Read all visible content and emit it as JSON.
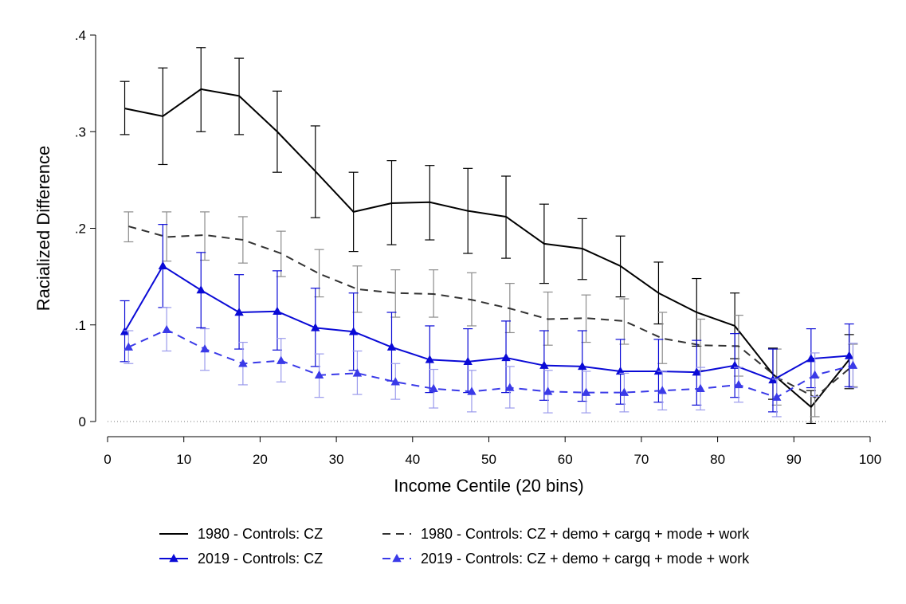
{
  "chart_data": {
    "type": "line",
    "title": "",
    "xlabel": "Income Centile (20 bins)",
    "ylabel": "Racialized Difference",
    "xlim": [
      0,
      100
    ],
    "ylim": [
      0,
      0.4
    ],
    "xticks": [
      0,
      10,
      20,
      30,
      40,
      50,
      60,
      70,
      80,
      90,
      100
    ],
    "yticks": [
      0,
      0.1,
      0.2,
      0.3,
      0.4
    ],
    "ytick_labels": [
      "0",
      ".1",
      ".2",
      ".3",
      ".4"
    ],
    "reference_line": {
      "y": 0,
      "style": "dotted"
    },
    "legend_placement": "bottom",
    "series": [
      {
        "name": "1980 - Controls: CZ",
        "color": "#000000",
        "line": "solid",
        "marker": "none",
        "x": [
          2.25,
          7.25,
          12.25,
          17.25,
          22.25,
          27.25,
          32.25,
          37.25,
          42.25,
          47.25,
          52.25,
          57.25,
          62.25,
          67.25,
          72.25,
          77.25,
          82.25,
          87.25,
          92.25,
          97.25
        ],
        "y": [
          0.324,
          0.316,
          0.344,
          0.337,
          0.3,
          0.259,
          0.217,
          0.226,
          0.227,
          0.218,
          0.212,
          0.184,
          0.179,
          0.161,
          0.133,
          0.113,
          0.099,
          0.049,
          0.015,
          0.064
        ],
        "ci_low": [
          0.297,
          0.266,
          0.3,
          0.297,
          0.258,
          0.211,
          0.176,
          0.183,
          0.188,
          0.174,
          0.169,
          0.143,
          0.147,
          0.129,
          0.101,
          0.078,
          0.065,
          0.023,
          -0.002,
          0.034
        ],
        "ci_high": [
          0.352,
          0.366,
          0.387,
          0.376,
          0.342,
          0.306,
          0.258,
          0.27,
          0.265,
          0.262,
          0.254,
          0.225,
          0.21,
          0.192,
          0.165,
          0.148,
          0.133,
          0.076,
          0.032,
          0.09
        ]
      },
      {
        "name": "1980 - Controls: CZ + demo + cargq + mode + work",
        "color": "#333333",
        "ci_color": "#8c8c8c",
        "line": "dashed",
        "marker": "none",
        "x": [
          2.75,
          7.75,
          12.75,
          17.75,
          22.75,
          27.75,
          32.75,
          37.75,
          42.75,
          47.75,
          52.75,
          57.75,
          62.75,
          67.75,
          72.75,
          77.75,
          82.75,
          87.75,
          92.75,
          97.75
        ],
        "y": [
          0.202,
          0.191,
          0.193,
          0.188,
          0.174,
          0.153,
          0.137,
          0.133,
          0.132,
          0.126,
          0.117,
          0.106,
          0.107,
          0.104,
          0.086,
          0.079,
          0.078,
          0.046,
          0.025,
          0.058
        ],
        "ci_low": [
          0.186,
          0.166,
          0.167,
          0.164,
          0.15,
          0.129,
          0.113,
          0.108,
          0.108,
          0.099,
          0.092,
          0.079,
          0.082,
          0.08,
          0.06,
          0.053,
          0.047,
          0.017,
          0.005,
          0.036
        ],
        "ci_high": [
          0.217,
          0.217,
          0.217,
          0.212,
          0.197,
          0.178,
          0.161,
          0.157,
          0.157,
          0.154,
          0.143,
          0.134,
          0.131,
          0.127,
          0.113,
          0.106,
          0.11,
          0.075,
          0.046,
          0.08
        ]
      },
      {
        "name": "2019 - Controls: CZ",
        "color": "#0a0ad6",
        "line": "solid",
        "marker": "triangle",
        "x": [
          2.25,
          7.25,
          12.25,
          17.25,
          22.25,
          27.25,
          32.25,
          37.25,
          42.25,
          47.25,
          52.25,
          57.25,
          62.25,
          67.25,
          72.25,
          77.25,
          82.25,
          87.25,
          92.25,
          97.25
        ],
        "y": [
          0.093,
          0.161,
          0.136,
          0.113,
          0.114,
          0.097,
          0.093,
          0.077,
          0.064,
          0.062,
          0.066,
          0.058,
          0.057,
          0.052,
          0.052,
          0.051,
          0.058,
          0.043,
          0.065,
          0.068
        ],
        "ci_low": [
          0.062,
          0.118,
          0.097,
          0.075,
          0.074,
          0.057,
          0.053,
          0.042,
          0.03,
          0.03,
          0.03,
          0.022,
          0.021,
          0.018,
          0.02,
          0.017,
          0.025,
          0.01,
          0.035,
          0.036
        ],
        "ci_high": [
          0.125,
          0.204,
          0.175,
          0.152,
          0.156,
          0.138,
          0.133,
          0.113,
          0.099,
          0.096,
          0.104,
          0.094,
          0.094,
          0.085,
          0.085,
          0.084,
          0.091,
          0.075,
          0.096,
          0.101
        ]
      },
      {
        "name": "2019 - Controls: CZ + demo + cargq + mode + work",
        "color": "#3a3ae8",
        "ci_color": "#9a9aec",
        "line": "dashed",
        "marker": "triangle",
        "x": [
          2.75,
          7.75,
          12.75,
          17.75,
          22.75,
          27.75,
          32.75,
          37.75,
          42.75,
          47.75,
          52.75,
          57.75,
          62.75,
          67.75,
          72.75,
          77.75,
          82.75,
          87.75,
          92.75,
          97.75
        ],
        "y": [
          0.077,
          0.095,
          0.075,
          0.06,
          0.063,
          0.048,
          0.05,
          0.041,
          0.034,
          0.031,
          0.035,
          0.031,
          0.03,
          0.03,
          0.032,
          0.034,
          0.038,
          0.025,
          0.048,
          0.058
        ],
        "ci_low": [
          0.06,
          0.073,
          0.053,
          0.038,
          0.041,
          0.025,
          0.028,
          0.023,
          0.014,
          0.01,
          0.014,
          0.009,
          0.009,
          0.01,
          0.012,
          0.012,
          0.02,
          0.005,
          0.026,
          0.035
        ],
        "ci_high": [
          0.094,
          0.118,
          0.096,
          0.082,
          0.086,
          0.07,
          0.073,
          0.06,
          0.054,
          0.053,
          0.057,
          0.053,
          0.052,
          0.05,
          0.052,
          0.056,
          0.056,
          0.044,
          0.071,
          0.081
        ]
      }
    ]
  }
}
